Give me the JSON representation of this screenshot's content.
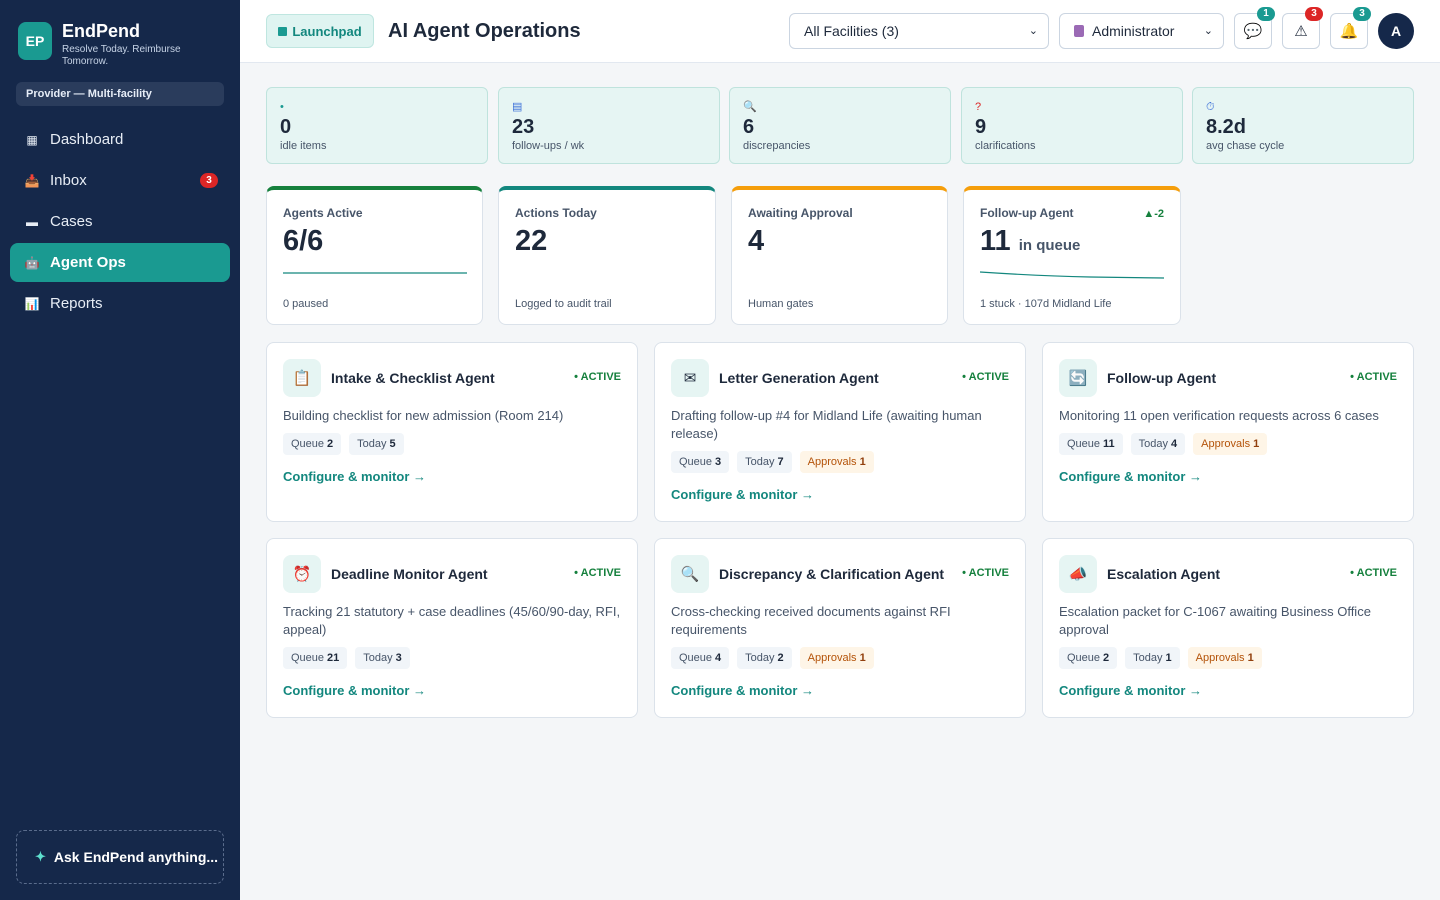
{
  "brand": {
    "logo": "EP",
    "name": "EndPend",
    "tagline": "Resolve Today. Reimburse Tomorrow."
  },
  "role_pill": "Provider — Multi-facility",
  "nav": [
    {
      "label": "Dashboard",
      "icon": "grid-icon",
      "glyph": "▦"
    },
    {
      "label": "Inbox",
      "icon": "inbox-icon",
      "glyph": "📥",
      "badge": "3"
    },
    {
      "label": "Cases",
      "icon": "folder-icon",
      "glyph": "▬"
    },
    {
      "label": "Agent Ops",
      "icon": "robot-icon",
      "glyph": "🤖",
      "active": true
    },
    {
      "label": "Reports",
      "icon": "chart-icon",
      "glyph": "📊"
    }
  ],
  "ask": {
    "icon": "sparkle-icon",
    "label": "Ask EndPend anything..."
  },
  "header": {
    "launchpad": "Launchpad",
    "title": "AI Agent Operations",
    "facility_select": "All Facilities (3)",
    "role_select": "Administrator",
    "buttons": [
      {
        "icon": "chat-icon",
        "glyph": "💬",
        "badge": "1",
        "badge_color": "#1a9a91"
      },
      {
        "icon": "warning-icon",
        "glyph": "⚠",
        "badge": "3",
        "badge_color": "#dc2626"
      },
      {
        "icon": "bell-icon",
        "glyph": "🔔",
        "badge": "3",
        "badge_color": "#1a9a91"
      }
    ],
    "avatar": "A"
  },
  "kpis": [
    {
      "icon": "dot-icon",
      "glyph": "•",
      "glyph_color": "#1a9a91",
      "value": "0",
      "label": "idle items"
    },
    {
      "icon": "list-icon",
      "glyph": "▤",
      "glyph_color": "#3b6fd8",
      "value": "23",
      "label": "follow-ups / wk"
    },
    {
      "icon": "search-icon",
      "glyph": "🔍",
      "glyph_color": "#3b6fd8",
      "value": "6",
      "label": "discrepancies"
    },
    {
      "icon": "question-icon",
      "glyph": "?",
      "glyph_color": "#dc2626",
      "value": "9",
      "label": "clarifications"
    },
    {
      "icon": "timer-icon",
      "glyph": "⏱",
      "glyph_color": "#3b6fd8",
      "value": "8.2d",
      "label": "avg chase cycle"
    }
  ],
  "stats": [
    {
      "label": "Agents Active",
      "value": "6/6",
      "unit": "",
      "foot": "0 paused",
      "accent": "#15803d",
      "sparkline": true
    },
    {
      "label": "Actions Today",
      "value": "22",
      "unit": "",
      "foot": "Logged to audit trail",
      "accent": "#13877e"
    },
    {
      "label": "Awaiting Approval",
      "value": "4",
      "unit": "",
      "foot": "Human gates",
      "accent": "#f59e0b"
    },
    {
      "label": "Follow-up Agent",
      "value": "11",
      "unit": "in queue",
      "foot": "1 stuck · 107d Midland Life",
      "accent": "#f59e0b",
      "trend": "▲-2",
      "sparkline": true
    }
  ],
  "agents": [
    {
      "name": "Intake & Checklist Agent",
      "icon": "clipboard-icon",
      "glyph": "📋",
      "status": "• ACTIVE",
      "desc": "Building checklist for new admission (Room 214)",
      "queue": "2",
      "today": "5",
      "approvals": "",
      "link": "Configure & monitor →"
    },
    {
      "name": "Letter Generation Agent",
      "icon": "envelope-icon",
      "glyph": "✉",
      "status": "• ACTIVE",
      "desc": "Drafting follow-up #4 for Midland Life (awaiting human release)",
      "queue": "3",
      "today": "7",
      "approvals": "1",
      "link": "Configure & monitor →"
    },
    {
      "name": "Follow-up Agent",
      "icon": "refresh-icon",
      "glyph": "🔄",
      "status": "• ACTIVE",
      "desc": "Monitoring 11 open verification requests across 6 cases",
      "queue": "11",
      "today": "4",
      "approvals": "1",
      "link": "Configure & monitor →"
    },
    {
      "name": "Deadline Monitor Agent",
      "icon": "alarm-icon",
      "glyph": "⏰",
      "status": "• ACTIVE",
      "desc": "Tracking 21 statutory + case deadlines (45/60/90-day, RFI, appeal)",
      "queue": "21",
      "today": "3",
      "approvals": "",
      "link": "Configure & monitor →"
    },
    {
      "name": "Discrepancy & Clarification Agent",
      "icon": "magnifier-icon",
      "glyph": "🔍",
      "status": "• ACTIVE",
      "desc": "Cross-checking received documents against RFI requirements",
      "queue": "4",
      "today": "2",
      "approvals": "1",
      "link": "Configure & monitor →"
    },
    {
      "name": "Escalation Agent",
      "icon": "megaphone-icon",
      "glyph": "📣",
      "status": "• ACTIVE",
      "desc": "Escalation packet for C-1067 awaiting Business Office approval",
      "queue": "2",
      "today": "1",
      "approvals": "1",
      "link": "Configure & monitor →"
    }
  ],
  "chip_labels": {
    "queue": "Queue",
    "today": "Today",
    "approvals": "Approvals"
  }
}
